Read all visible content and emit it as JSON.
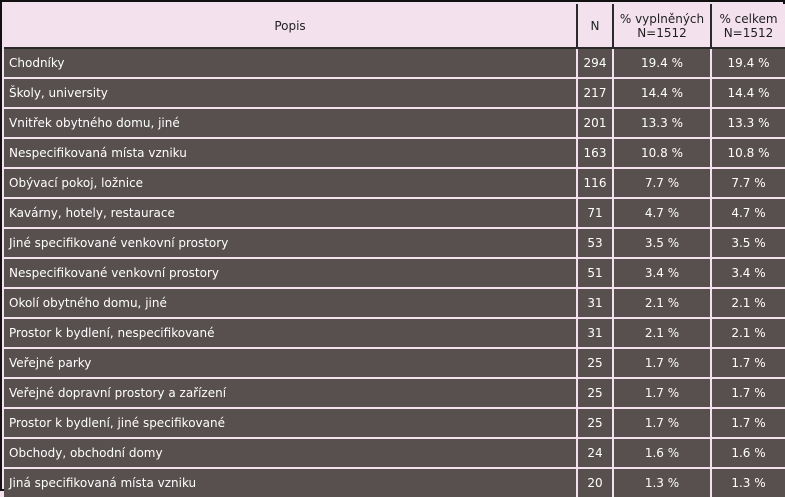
{
  "columns": {
    "popis": "Popis",
    "n": "N",
    "pct_filled": "% vyplněných\nN=1512",
    "pct_total": "% celkem\nN=1512"
  },
  "rows": [
    {
      "popis": "Chodníky",
      "n": "294",
      "pct_filled": "19.4 %",
      "pct_total": "19.4 %"
    },
    {
      "popis": "Školy, university",
      "n": "217",
      "pct_filled": "14.4 %",
      "pct_total": "14.4 %"
    },
    {
      "popis": "Vnitřek obytného domu, jiné",
      "n": "201",
      "pct_filled": "13.3 %",
      "pct_total": "13.3 %"
    },
    {
      "popis": "Nespecifikovaná místa vzniku",
      "n": "163",
      "pct_filled": "10.8 %",
      "pct_total": "10.8 %"
    },
    {
      "popis": "Obývací pokoj, ložnice",
      "n": "116",
      "pct_filled": "7.7 %",
      "pct_total": "7.7 %"
    },
    {
      "popis": "Kavárny, hotely, restaurace",
      "n": "71",
      "pct_filled": "4.7 %",
      "pct_total": "4.7 %"
    },
    {
      "popis": "Jiné specifikované venkovní prostory",
      "n": "53",
      "pct_filled": "3.5 %",
      "pct_total": "3.5 %"
    },
    {
      "popis": "Nespecifikované venkovní prostory",
      "n": "51",
      "pct_filled": "3.4 %",
      "pct_total": "3.4 %"
    },
    {
      "popis": "Okolí obytného domu, jiné",
      "n": "31",
      "pct_filled": "2.1 %",
      "pct_total": "2.1 %"
    },
    {
      "popis": "Prostor k bydlení, nespecifikované",
      "n": "31",
      "pct_filled": "2.1 %",
      "pct_total": "2.1 %"
    },
    {
      "popis": "Veřejné parky",
      "n": "25",
      "pct_filled": "1.7 %",
      "pct_total": "1.7 %"
    },
    {
      "popis": "Veřejné dopravní prostory a zařízení",
      "n": "25",
      "pct_filled": "1.7 %",
      "pct_total": "1.7 %"
    },
    {
      "popis": "Prostor k bydlení, jiné specifikované",
      "n": "25",
      "pct_filled": "1.7 %",
      "pct_total": "1.7 %"
    },
    {
      "popis": "Obchody, obchodní domy",
      "n": "24",
      "pct_filled": "1.6 %",
      "pct_total": "1.6 %"
    },
    {
      "popis": "Jiná specifikovaná místa vzniku",
      "n": "20",
      "pct_filled": "1.3 %",
      "pct_total": "1.3 %"
    }
  ],
  "colors": {
    "header_bg": "#f3e2ee",
    "row_bg": "#57504f",
    "row_text": "#ffffff",
    "frame": "#111111"
  }
}
